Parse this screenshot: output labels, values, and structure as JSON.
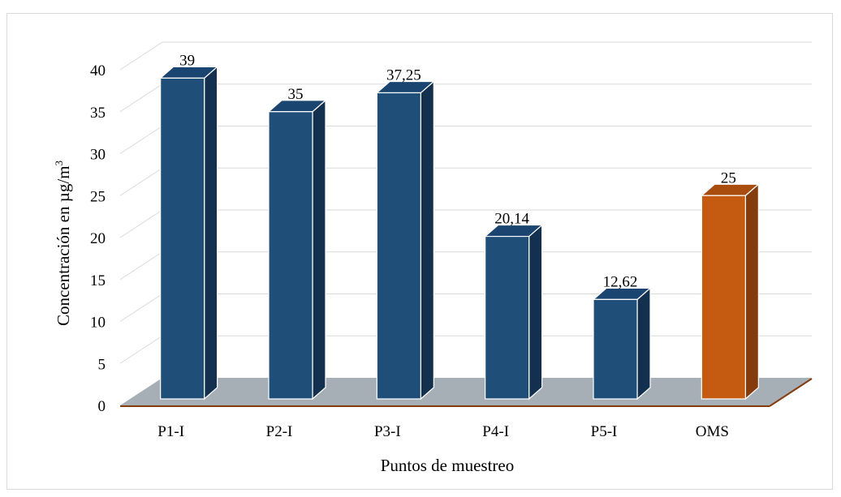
{
  "chart_data": {
    "type": "bar",
    "categories": [
      "P1-I",
      "P2-I",
      "P3-I",
      "P4-I",
      "P5-I",
      "OMS"
    ],
    "values": [
      39,
      35,
      37.25,
      20.14,
      12.62,
      25
    ],
    "data_labels": [
      "39",
      "35",
      "37,25",
      "20,14",
      "12,62",
      "25"
    ],
    "xlabel": "Puntos de muestreo",
    "ylabel_base": "Concentración en µg/m",
    "ylabel_sup": "3",
    "ylim": [
      0,
      40
    ],
    "yticks": [
      0,
      5,
      10,
      15,
      20,
      25,
      30,
      35,
      40
    ],
    "grid": true,
    "three_d": true,
    "colors": {
      "bar": "#1f4e79",
      "bar_top": "#1a4570",
      "bar_side": "#14304f",
      "highlight_bar": "#c55a11",
      "highlight_top": "#a94d0e",
      "highlight_side": "#843c0c",
      "floor": "#a6aeb6",
      "floor_edge": "#843c0c",
      "grid": "#d9d9d9"
    },
    "highlight_category": "OMS"
  }
}
